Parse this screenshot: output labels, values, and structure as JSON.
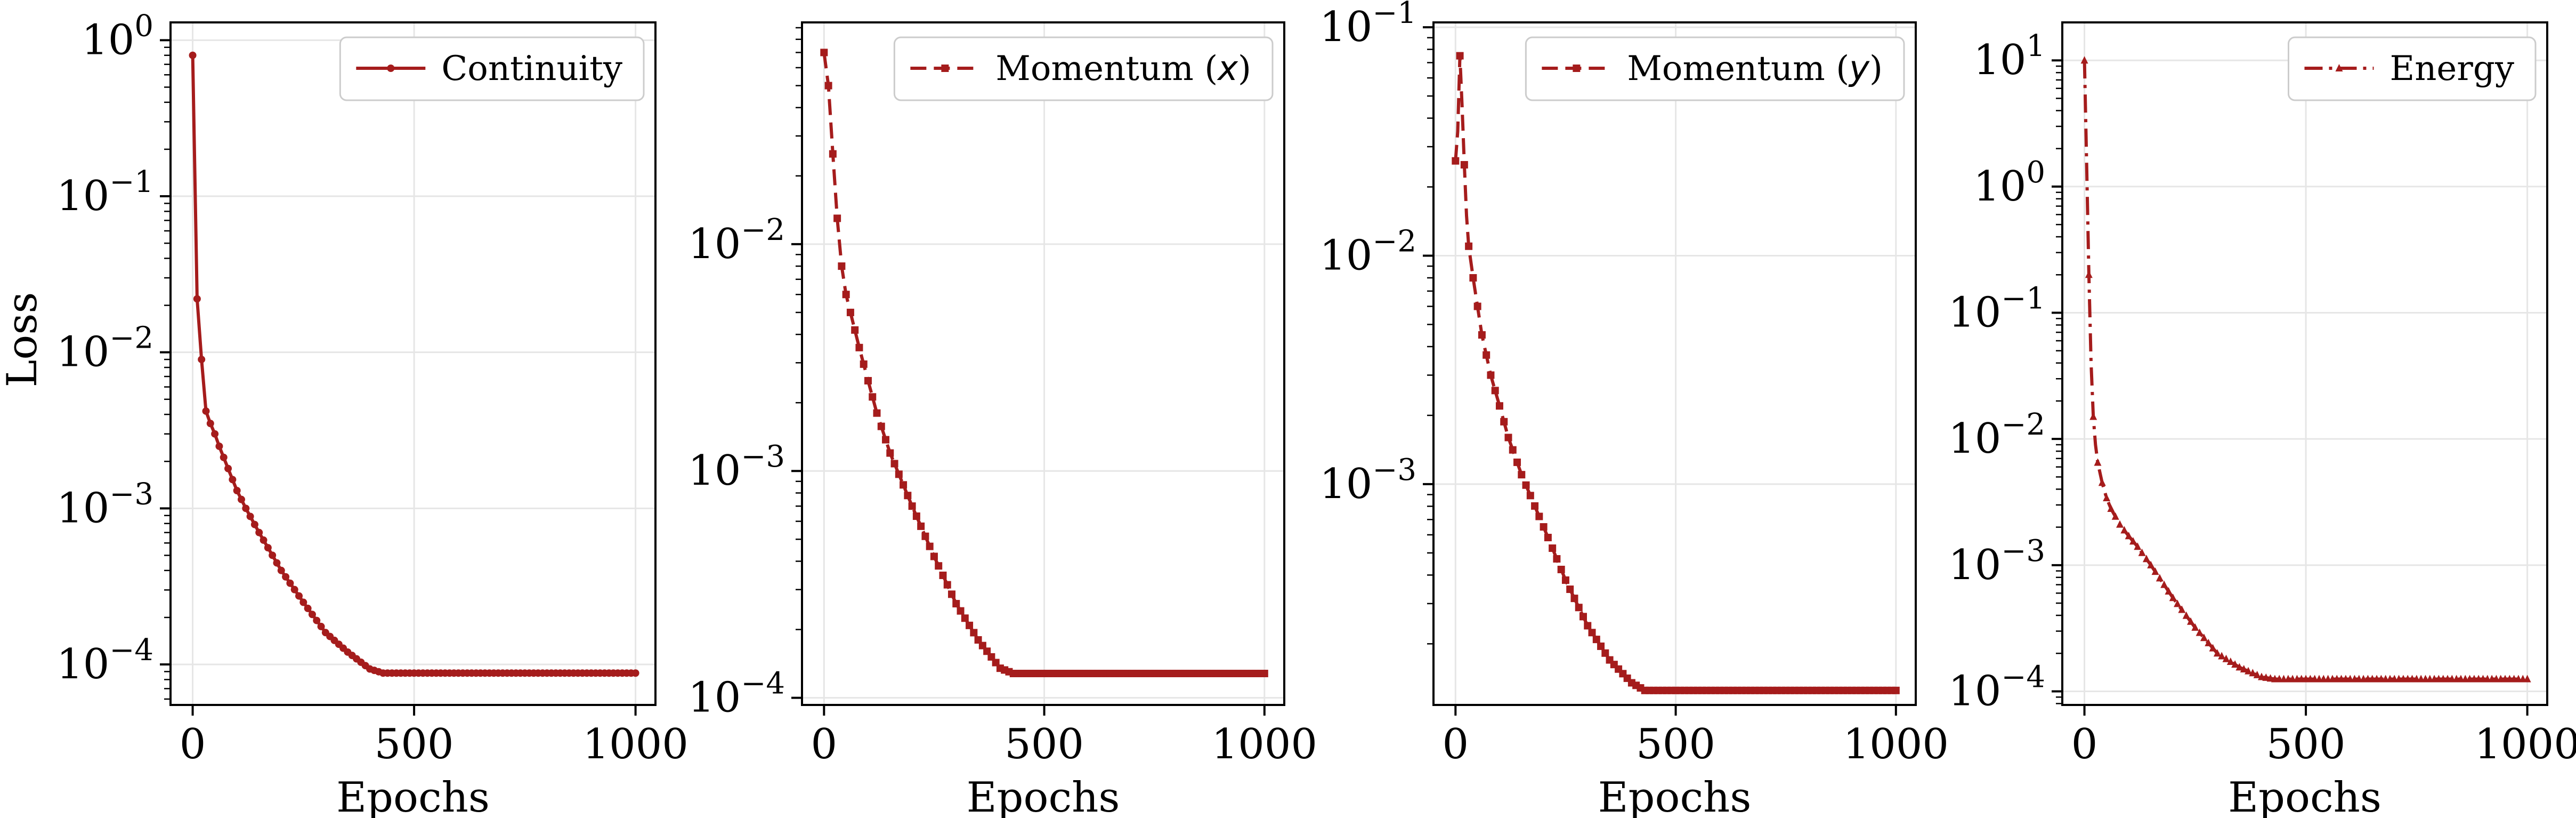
{
  "chart_data": [
    {
      "type": "line",
      "xlabel": "Epochs",
      "ylabel": "Loss",
      "yscale": "log",
      "xlim": [
        -50,
        1045
      ],
      "ylim": [
        5.5e-05,
        1.3
      ],
      "xticks": [
        0,
        500,
        1000
      ],
      "yticks": [
        {
          "v": 0.0001,
          "exp": "-4"
        },
        {
          "v": 0.001,
          "exp": "-3"
        },
        {
          "v": 0.01,
          "exp": "-2"
        },
        {
          "v": 0.1,
          "exp": "-1"
        },
        {
          "v": 1,
          "exp": "0"
        }
      ],
      "grid": true,
      "legend": "upper right",
      "color": "#a51c1c",
      "series": [
        {
          "name": "Continuity",
          "linestyle": "solid",
          "marker": "circle",
          "x": [
            0,
            10,
            20,
            30,
            40,
            50,
            60,
            80,
            100,
            120,
            150,
            200,
            250,
            300,
            350,
            400,
            430,
            500,
            600,
            700,
            800,
            900,
            1000
          ],
          "y": [
            0.8,
            0.022,
            0.009,
            0.0042,
            0.0035,
            0.003,
            0.0025,
            0.0018,
            0.0013,
            0.001,
            0.0007,
            0.0004,
            0.00025,
            0.00016,
            0.00012,
            9.35e-05,
            8.8e-05,
            8.8e-05,
            8.8e-05,
            8.8e-05,
            8.8e-05,
            8.8e-05,
            8.8e-05
          ]
        }
      ]
    },
    {
      "type": "line",
      "xlabel": "Epochs",
      "ylabel": "",
      "yscale": "log",
      "xlim": [
        -50,
        1045
      ],
      "ylim": [
        9.3e-05,
        0.095
      ],
      "xticks": [
        0,
        500,
        1000
      ],
      "yticks": [
        {
          "v": 0.0001,
          "exp": "-4"
        },
        {
          "v": 0.001,
          "exp": "-3"
        },
        {
          "v": 0.01,
          "exp": "-2"
        }
      ],
      "grid": true,
      "legend": "upper right",
      "color": "#a51c1c",
      "series": [
        {
          "name": "Momentum (x)",
          "linestyle": "dashed",
          "marker": "square",
          "x": [
            0,
            10,
            20,
            30,
            40,
            50,
            60,
            80,
            100,
            120,
            150,
            200,
            250,
            300,
            350,
            400,
            430,
            500,
            600,
            700,
            800,
            900,
            1000
          ],
          "y": [
            0.07,
            0.05,
            0.025,
            0.013,
            0.008,
            0.006,
            0.005,
            0.0035,
            0.0025,
            0.0018,
            0.0012,
            0.0007,
            0.00042,
            0.00026,
            0.00018,
            0.000135,
            0.000128,
            0.000128,
            0.000128,
            0.000128,
            0.000128,
            0.000128,
            0.000128
          ]
        }
      ]
    },
    {
      "type": "line",
      "xlabel": "Epochs",
      "ylabel": "",
      "yscale": "log",
      "xlim": [
        -50,
        1045
      ],
      "ylim": [
        0.000108,
        0.105
      ],
      "xticks": [
        0,
        500,
        1000
      ],
      "yticks": [
        {
          "v": 0.001,
          "exp": "-3"
        },
        {
          "v": 0.01,
          "exp": "-2"
        },
        {
          "v": 0.1,
          "exp": "-1"
        }
      ],
      "grid": true,
      "legend": "upper right",
      "color": "#a51c1c",
      "series": [
        {
          "name": "Momentum (y)",
          "linestyle": "dashed",
          "marker": "square",
          "x": [
            0,
            5,
            10,
            15,
            20,
            25,
            30,
            40,
            50,
            60,
            80,
            100,
            120,
            150,
            200,
            250,
            300,
            350,
            400,
            430,
            500,
            600,
            700,
            800,
            900,
            1000
          ],
          "y": [
            0.026,
            0.035,
            0.075,
            0.045,
            0.025,
            0.015,
            0.011,
            0.008,
            0.006,
            0.0045,
            0.003,
            0.0022,
            0.0016,
            0.0011,
            0.00065,
            0.00038,
            0.00024,
            0.00017,
            0.000135,
            0.000125,
            0.000125,
            0.000125,
            0.000125,
            0.000125,
            0.000125,
            0.000125
          ]
        }
      ]
    },
    {
      "type": "line",
      "xlabel": "Epochs",
      "ylabel": "",
      "yscale": "log",
      "xlim": [
        -50,
        1045
      ],
      "ylim": [
        7.8e-05,
        20
      ],
      "xticks": [
        0,
        500,
        1000
      ],
      "yticks": [
        {
          "v": 0.0001,
          "exp": "-4"
        },
        {
          "v": 0.001,
          "exp": "-3"
        },
        {
          "v": 0.01,
          "exp": "-2"
        },
        {
          "v": 0.1,
          "exp": "-1"
        },
        {
          "v": 1,
          "exp": "0"
        },
        {
          "v": 10,
          "exp": "1"
        }
      ],
      "grid": true,
      "legend": "upper right",
      "color": "#a51c1c",
      "series": [
        {
          "name": "Energy",
          "linestyle": "dashdot",
          "marker": "triangle",
          "x": [
            0,
            5,
            10,
            15,
            20,
            25,
            30,
            40,
            50,
            60,
            80,
            100,
            120,
            150,
            200,
            250,
            300,
            350,
            400,
            430,
            500,
            600,
            700,
            800,
            900,
            1000
          ],
          "y": [
            10,
            1.5,
            0.2,
            0.04,
            0.015,
            0.009,
            0.0065,
            0.0045,
            0.0034,
            0.0028,
            0.0021,
            0.0017,
            0.0014,
            0.001,
            0.00055,
            0.00032,
            0.0002,
            0.000155,
            0.00013,
            0.000125,
            0.000125,
            0.000125,
            0.000125,
            0.000125,
            0.000125,
            0.000125
          ]
        }
      ]
    }
  ]
}
